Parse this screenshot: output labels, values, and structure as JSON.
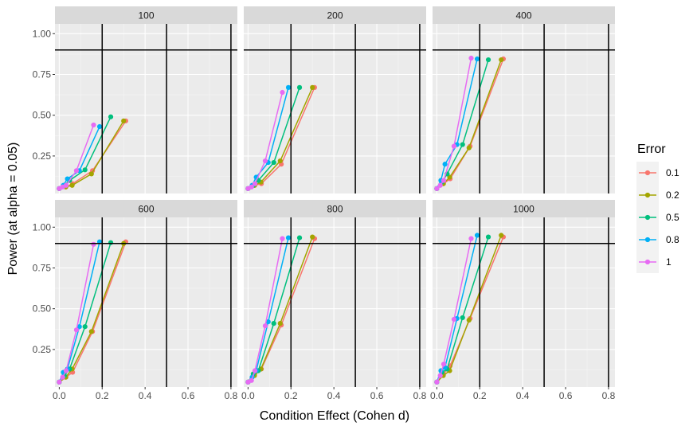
{
  "chart_data": {
    "type": "line",
    "facet_variable": "sample size",
    "xlabel": "Condition Effect (Cohen d)",
    "ylabel": "Power (at alpha = 0.05)",
    "xlim": [
      -0.02,
      0.83
    ],
    "ylim": [
      0.02,
      1.06
    ],
    "x_ticks": [
      0.0,
      0.2,
      0.4,
      0.6,
      0.8
    ],
    "x_tick_labels": [
      "0.0",
      "0.2",
      "0.4",
      "0.6",
      "0.8"
    ],
    "y_ticks": [
      0.25,
      0.5,
      0.75,
      1.0
    ],
    "y_tick_labels": [
      "0.25",
      "0.50",
      "0.75",
      "1.00"
    ],
    "reference_lines": {
      "horizontal": [
        0.9
      ],
      "vertical": [
        0.2,
        0.5,
        0.8
      ]
    },
    "grid": true,
    "legend": {
      "title": "Error",
      "position": "right",
      "entries": [
        "0.1",
        "0.2",
        "0.5",
        "0.8",
        "1"
      ]
    },
    "colors": {
      "0.1": "#F8766D",
      "0.2": "#A3A500",
      "0.5": "#00BF7D",
      "0.8": "#00B0F6",
      "1": "#E76BF3"
    },
    "facets": [
      {
        "label": "100",
        "series": [
          {
            "name": "0.1",
            "x": [
              0,
              0.031,
              0.062,
              0.155,
              0.31
            ],
            "y": [
              0.05,
              0.06,
              0.08,
              0.16,
              0.465
            ]
          },
          {
            "name": "0.2",
            "x": [
              0,
              0.03,
              0.06,
              0.15,
              0.3
            ],
            "y": [
              0.05,
              0.06,
              0.07,
              0.14,
              0.465
            ]
          },
          {
            "name": "0.5",
            "x": [
              0,
              0.024,
              0.048,
              0.12,
              0.24
            ],
            "y": [
              0.05,
              0.07,
              0.1,
              0.165,
              0.49
            ]
          },
          {
            "name": "0.8",
            "x": [
              0,
              0.019,
              0.038,
              0.094,
              0.188
            ],
            "y": [
              0.05,
              0.07,
              0.11,
              0.16,
              0.43
            ]
          },
          {
            "name": "1",
            "x": [
              0,
              0.016,
              0.032,
              0.08,
              0.16
            ],
            "y": [
              0.05,
              0.06,
              0.07,
              0.16,
              0.44
            ]
          }
        ]
      },
      {
        "label": "200",
        "series": [
          {
            "name": "0.1",
            "x": [
              0,
              0.031,
              0.062,
              0.155,
              0.31
            ],
            "y": [
              0.05,
              0.07,
              0.08,
              0.2,
              0.67
            ]
          },
          {
            "name": "0.2",
            "x": [
              0,
              0.03,
              0.06,
              0.15,
              0.3
            ],
            "y": [
              0.05,
              0.07,
              0.09,
              0.22,
              0.67
            ]
          },
          {
            "name": "0.5",
            "x": [
              0,
              0.024,
              0.048,
              0.12,
              0.24
            ],
            "y": [
              0.05,
              0.07,
              0.1,
              0.21,
              0.67
            ]
          },
          {
            "name": "0.8",
            "x": [
              0,
              0.019,
              0.038,
              0.094,
              0.188
            ],
            "y": [
              0.05,
              0.07,
              0.12,
              0.21,
              0.67
            ]
          },
          {
            "name": "1",
            "x": [
              0,
              0.016,
              0.032,
              0.08,
              0.16
            ],
            "y": [
              0.05,
              0.06,
              0.08,
              0.22,
              0.64
            ]
          }
        ]
      },
      {
        "label": "400",
        "series": [
          {
            "name": "0.1",
            "x": [
              0,
              0.031,
              0.062,
              0.155,
              0.31
            ],
            "y": [
              0.05,
              0.08,
              0.11,
              0.31,
              0.845
            ]
          },
          {
            "name": "0.2",
            "x": [
              0,
              0.03,
              0.06,
              0.15,
              0.3
            ],
            "y": [
              0.05,
              0.08,
              0.12,
              0.3,
              0.84
            ]
          },
          {
            "name": "0.5",
            "x": [
              0,
              0.024,
              0.048,
              0.12,
              0.24
            ],
            "y": [
              0.05,
              0.09,
              0.14,
              0.32,
              0.84
            ]
          },
          {
            "name": "0.8",
            "x": [
              0,
              0.019,
              0.038,
              0.094,
              0.188
            ],
            "y": [
              0.05,
              0.1,
              0.2,
              0.32,
              0.845
            ]
          },
          {
            "name": "1",
            "x": [
              0,
              0.016,
              0.032,
              0.08,
              0.16
            ],
            "y": [
              0.05,
              0.07,
              0.1,
              0.31,
              0.85
            ]
          }
        ]
      },
      {
        "label": "600",
        "series": [
          {
            "name": "0.1",
            "x": [
              0,
              0.031,
              0.062,
              0.155,
              0.31
            ],
            "y": [
              0.05,
              0.08,
              0.11,
              0.36,
              0.91
            ]
          },
          {
            "name": "0.2",
            "x": [
              0,
              0.03,
              0.06,
              0.15,
              0.3
            ],
            "y": [
              0.05,
              0.08,
              0.13,
              0.36,
              0.9
            ]
          },
          {
            "name": "0.5",
            "x": [
              0,
              0.024,
              0.048,
              0.12,
              0.24
            ],
            "y": [
              0.05,
              0.09,
              0.13,
              0.39,
              0.905
            ]
          },
          {
            "name": "0.8",
            "x": [
              0,
              0.019,
              0.038,
              0.094,
              0.188
            ],
            "y": [
              0.05,
              0.11,
              0.13,
              0.39,
              0.91
            ]
          },
          {
            "name": "1",
            "x": [
              0,
              0.016,
              0.032,
              0.08,
              0.16
            ],
            "y": [
              0.05,
              0.08,
              0.12,
              0.37,
              0.895
            ]
          }
        ]
      },
      {
        "label": "800",
        "series": [
          {
            "name": "0.1",
            "x": [
              0,
              0.031,
              0.062,
              0.155,
              0.31
            ],
            "y": [
              0.05,
              0.1,
              0.13,
              0.4,
              0.93
            ]
          },
          {
            "name": "0.2",
            "x": [
              0,
              0.03,
              0.06,
              0.15,
              0.3
            ],
            "y": [
              0.05,
              0.09,
              0.13,
              0.41,
              0.94
            ]
          },
          {
            "name": "0.5",
            "x": [
              0,
              0.024,
              0.048,
              0.12,
              0.24
            ],
            "y": [
              0.05,
              0.1,
              0.12,
              0.41,
              0.935
            ]
          },
          {
            "name": "0.8",
            "x": [
              0,
              0.019,
              0.038,
              0.094,
              0.188
            ],
            "y": [
              0.05,
              0.08,
              0.12,
              0.42,
              0.935
            ]
          },
          {
            "name": "1",
            "x": [
              0,
              0.016,
              0.032,
              0.08,
              0.16
            ],
            "y": [
              0.05,
              0.06,
              0.12,
              0.395,
              0.93
            ]
          }
        ]
      },
      {
        "label": "1000",
        "series": [
          {
            "name": "0.1",
            "x": [
              0,
              0.031,
              0.062,
              0.155,
              0.31
            ],
            "y": [
              0.05,
              0.1,
              0.15,
              0.44,
              0.94
            ]
          },
          {
            "name": "0.2",
            "x": [
              0,
              0.03,
              0.06,
              0.15,
              0.3
            ],
            "y": [
              0.05,
              0.09,
              0.12,
              0.43,
              0.95
            ]
          },
          {
            "name": "0.5",
            "x": [
              0,
              0.024,
              0.048,
              0.12,
              0.24
            ],
            "y": [
              0.05,
              0.11,
              0.13,
              0.445,
              0.94
            ]
          },
          {
            "name": "0.8",
            "x": [
              0,
              0.019,
              0.038,
              0.094,
              0.188
            ],
            "y": [
              0.05,
              0.12,
              0.14,
              0.44,
              0.95
            ]
          },
          {
            "name": "1",
            "x": [
              0,
              0.016,
              0.032,
              0.08,
              0.16
            ],
            "y": [
              0.05,
              0.09,
              0.16,
              0.435,
              0.93
            ]
          }
        ]
      }
    ]
  }
}
